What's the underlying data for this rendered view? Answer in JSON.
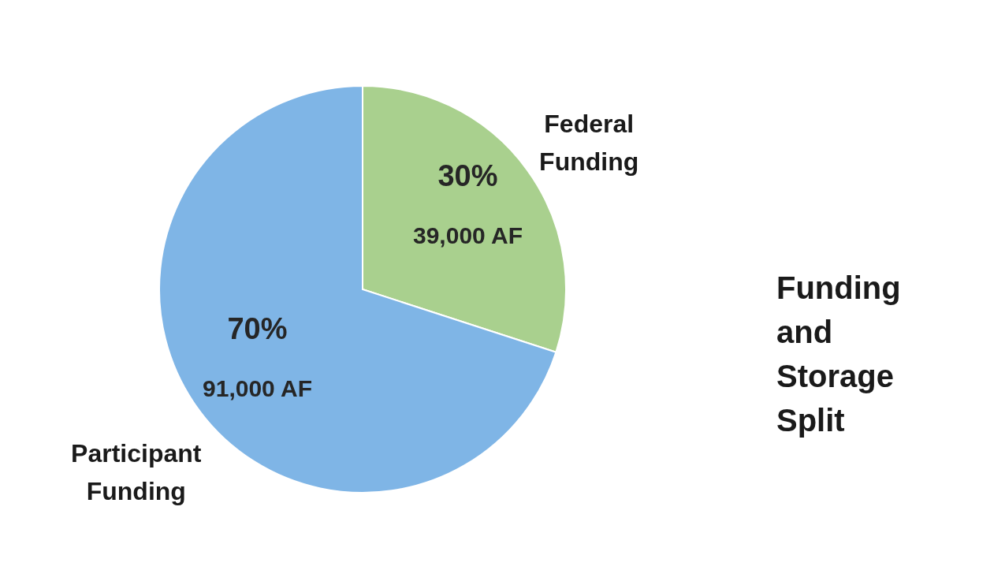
{
  "chart_data": {
    "type": "pie",
    "title": "Funding and Storage Split",
    "categories": [
      "Federal Funding",
      "Participant Funding"
    ],
    "values": [
      30,
      70
    ],
    "colors": [
      "#a9d08e",
      "#7fb5e6"
    ],
    "value_labels": [
      "30%",
      "70%"
    ],
    "annotations": [
      "39,000 AF",
      "91,000 AF"
    ]
  }
}
